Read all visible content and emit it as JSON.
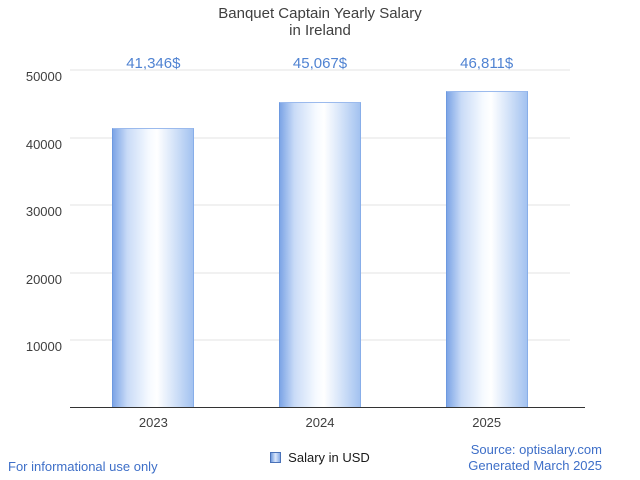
{
  "chart_data": {
    "type": "bar",
    "title": "Banquet Captain Yearly Salary in Ireland",
    "title_lines": [
      "Banquet Captain Yearly Salary",
      "in Ireland"
    ],
    "categories": [
      "2023",
      "2024",
      "2025"
    ],
    "values": [
      41346,
      45067,
      46811
    ],
    "value_labels": [
      "41,346$",
      "45,067$",
      "46,811$"
    ],
    "xlabel": "",
    "ylabel": "",
    "ylim": [
      0,
      50000
    ],
    "yticks": [
      10000,
      20000,
      30000,
      40000,
      50000
    ],
    "grid": true,
    "legend": {
      "label": "Salary in USD",
      "position": "bottom"
    },
    "colors": {
      "bar_main": "#7da5e6",
      "bar_highlight": "#ffffff",
      "value_text": "#5083d2",
      "link_text": "#3e6fc8",
      "axis_text": "#3f3f3f",
      "gridline": "#e3e3e3",
      "baseline": "#333333"
    }
  },
  "footer": {
    "disclaimer": "For informational use only",
    "source": "Source: optisalary.com",
    "generated": "Generated March 2025"
  }
}
